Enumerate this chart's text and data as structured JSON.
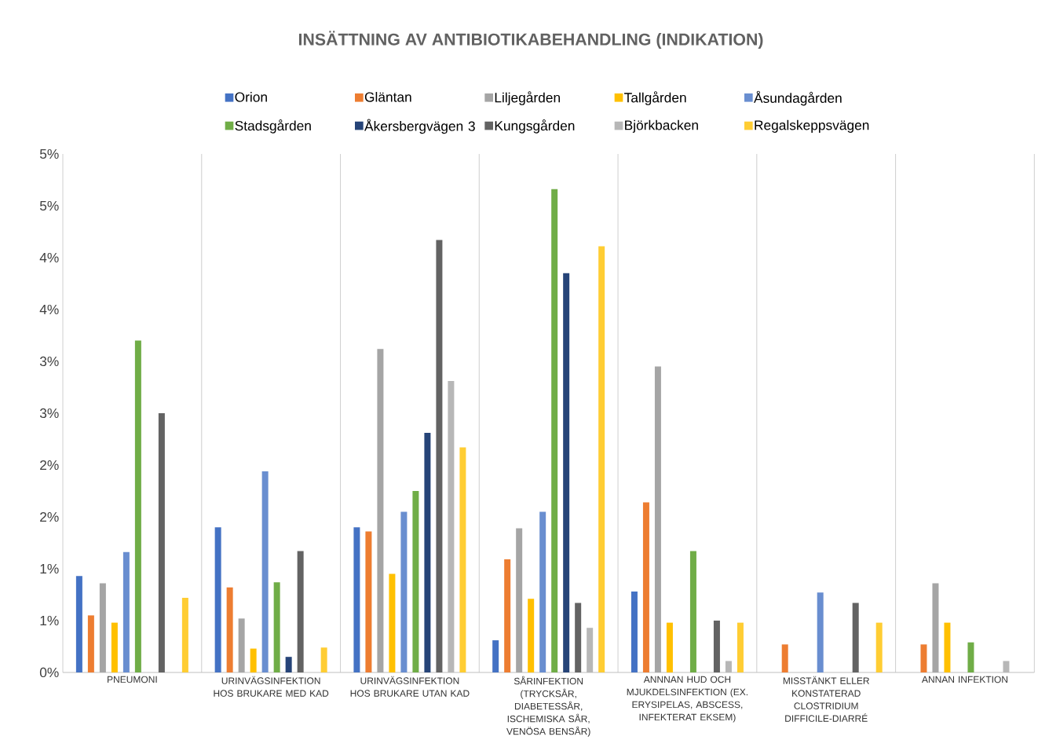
{
  "chart_data": {
    "type": "bar",
    "title": "INSÄTTNING AV ANTIBIOTIKABEHANDLING (INDIKATION)",
    "categories": [
      "PNEUMONI",
      "URINVÄGSINFEKTION HOS BRUKARE MED KAD",
      "URINVÄGSINFEKTION HOS BRUKARE UTAN KAD",
      "SÅRINFEKTION (TRYCKSÅR, DIABETESSÅR, ISCHEMISKA SÅR, VENÖSA BENSÅR)",
      "ANNNAN HUD OCH MJUKDELSINFEKTION (EX. ERYSIPELAS, ABSCESS, INFEKTERAT EKSEM)",
      "MISSTÄNKT ELLER KONSTATERAD CLOSTRIDIUM DIFFICILE-DIARRÉ",
      "ANNAN INFEKTION"
    ],
    "series": [
      {
        "name": "Orion",
        "color": "#4472c4",
        "values": [
          0.93,
          1.4,
          1.4,
          0.31,
          0.78,
          null,
          null
        ]
      },
      {
        "name": "Gläntan",
        "color": "#ed7d31",
        "values": [
          0.55,
          0.82,
          1.36,
          1.09,
          1.64,
          0.27,
          0.27
        ]
      },
      {
        "name": "Liljegården",
        "color": "#a5a5a5",
        "values": [
          0.86,
          0.52,
          3.12,
          1.39,
          2.95,
          null,
          0.86
        ]
      },
      {
        "name": "Tallgården",
        "color": "#ffc000",
        "values": [
          0.48,
          0.23,
          0.95,
          0.71,
          0.48,
          null,
          0.48
        ]
      },
      {
        "name": "Åsundagården",
        "color": "#698ed0",
        "values": [
          1.16,
          1.94,
          1.55,
          1.55,
          null,
          0.77,
          null
        ]
      },
      {
        "name": "Stadsgården",
        "color": "#70ad47",
        "values": [
          3.2,
          0.87,
          1.75,
          4.66,
          1.17,
          null,
          0.29
        ]
      },
      {
        "name": "Åkersbergvägen 3",
        "color": "#264478",
        "values": [
          null,
          0.15,
          2.31,
          3.85,
          null,
          null,
          null
        ]
      },
      {
        "name": "Kungsgården",
        "color": "#636363",
        "values": [
          2.5,
          1.17,
          4.17,
          0.67,
          0.5,
          0.67,
          null
        ]
      },
      {
        "name": "Björkbacken",
        "color": "#b7b7b7",
        "values": [
          null,
          null,
          2.81,
          0.43,
          0.11,
          null,
          0.11
        ]
      },
      {
        "name": "Regalskeppsvägen",
        "color": "#ffcd33",
        "values": [
          0.72,
          0.24,
          2.17,
          4.11,
          0.48,
          0.48,
          null
        ]
      }
    ],
    "ylim": [
      0,
      5
    ],
    "yticks": [
      {
        "value": 0,
        "label": "0%"
      },
      {
        "value": 0.5,
        "label": "1%"
      },
      {
        "value": 1,
        "label": "1%"
      },
      {
        "value": 1.5,
        "label": "2%"
      },
      {
        "value": 2,
        "label": "2%"
      },
      {
        "value": 2.5,
        "label": "3%"
      },
      {
        "value": 3,
        "label": "3%"
      },
      {
        "value": 3.5,
        "label": "4%"
      },
      {
        "value": 4,
        "label": "4%"
      },
      {
        "value": 4.5,
        "label": "5%"
      },
      {
        "value": 5,
        "label": "5%"
      }
    ],
    "grid": "x",
    "legend": "top"
  }
}
